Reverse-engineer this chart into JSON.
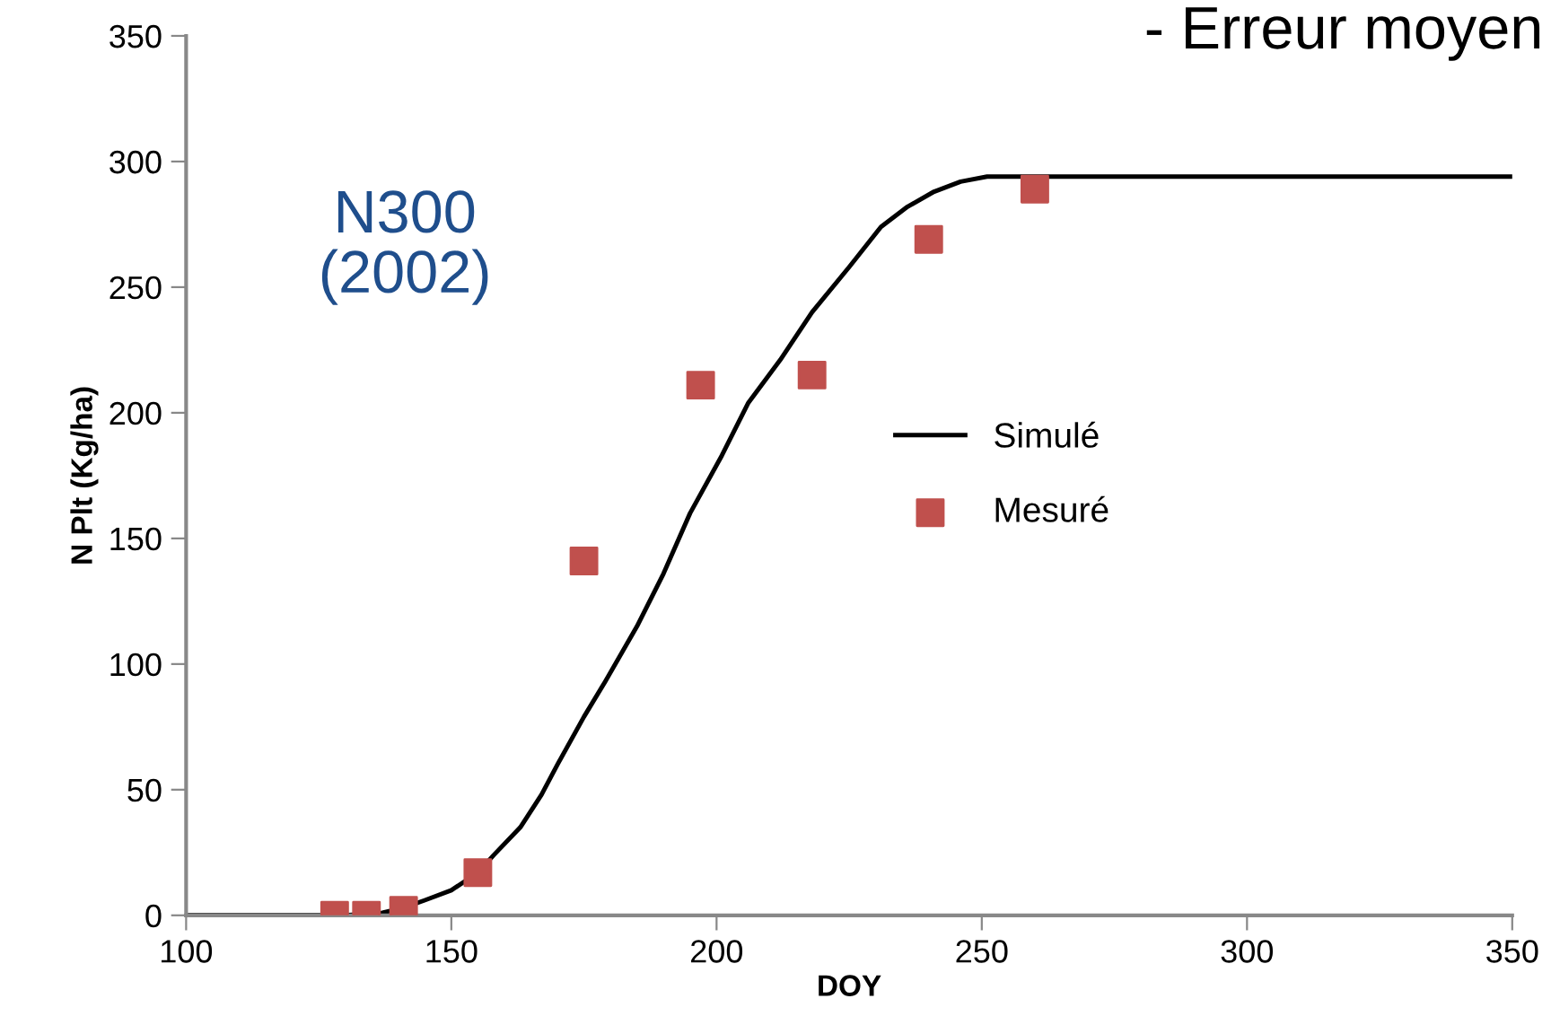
{
  "chart_data": {
    "type": "line",
    "xlabel": "DOY",
    "ylabel": "N Plt (Kg/ha)",
    "xlim": [
      100,
      350
    ],
    "xticks": [
      100,
      150,
      200,
      250,
      300,
      350
    ],
    "ylim": [
      0,
      350
    ],
    "yticks": [
      0,
      50,
      100,
      150,
      200,
      250,
      300,
      350
    ],
    "grid": false,
    "legend": "right",
    "annotations": [
      "N300\n(2002)",
      "- Erreur moyen"
    ],
    "series": [
      {
        "name": "Simulé",
        "color": "#000000",
        "marker": "none",
        "line_style": "solid",
        "x": [
          100,
          130,
          137,
          141,
          145,
          150,
          155,
          158,
          163,
          167,
          170,
          175,
          179,
          185,
          190,
          195,
          201,
          206,
          212,
          218,
          225,
          231,
          236,
          241,
          246,
          251,
          350
        ],
        "values": [
          0,
          0,
          1,
          3,
          6,
          10,
          17,
          24,
          35,
          48,
          60,
          79,
          93,
          115,
          136,
          160,
          183,
          204,
          221,
          240,
          258,
          274,
          282,
          288,
          292,
          294,
          294
        ]
      },
      {
        "name": "Mesuré",
        "type": "scatter",
        "color": "#c0504d",
        "marker": "square",
        "x": [
          128,
          134,
          141,
          155,
          175,
          197,
          218,
          240,
          260
        ],
        "values": [
          0,
          0,
          2,
          17,
          141,
          211,
          215,
          269,
          289
        ]
      }
    ]
  }
}
